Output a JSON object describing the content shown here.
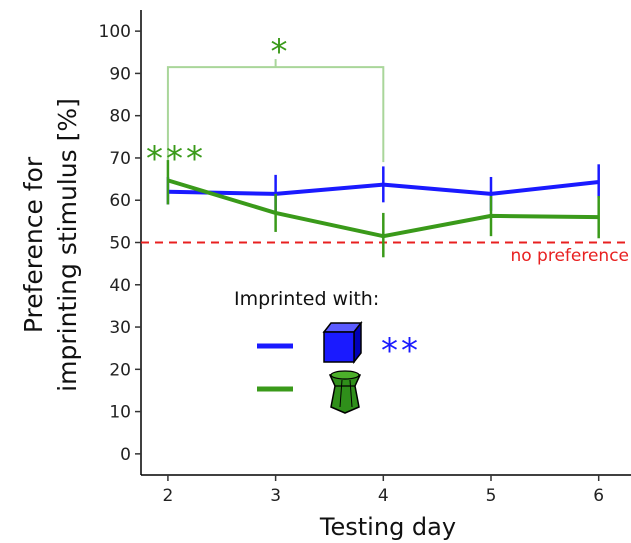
{
  "chart_data": {
    "type": "line",
    "xlabel": "Testing day",
    "ylabel_lines": [
      "Preference for",
      "imprinting stimulus [%]"
    ],
    "xlim": [
      1.75,
      6.3
    ],
    "ylim": [
      -5,
      105
    ],
    "xticks": [
      2,
      3,
      4,
      5,
      6
    ],
    "yticks": [
      0,
      10,
      20,
      30,
      40,
      50,
      60,
      70,
      80,
      90,
      100
    ],
    "grid": false,
    "series": [
      {
        "name": "cube",
        "color": "#1a1aff",
        "x": [
          2,
          3,
          4,
          5,
          6
        ],
        "values": [
          62,
          61.5,
          63.7,
          61.5,
          64.3
        ],
        "err_low": [
          59,
          57,
          59.5,
          57.5,
          60.5
        ],
        "err_high": [
          65.5,
          66,
          68,
          65.5,
          68.5
        ]
      },
      {
        "name": "hourglass",
        "color": "#3a9a1a",
        "x": [
          2,
          3,
          4,
          5,
          6
        ],
        "values": [
          64.7,
          57,
          51.5,
          56.3,
          56
        ],
        "err_low": [
          59,
          52.5,
          46.5,
          51.5,
          51
        ],
        "err_high": [
          69.5,
          61.5,
          57,
          61,
          61
        ]
      }
    ],
    "reference_line": {
      "y": 50,
      "label": "no preference",
      "color": "#e82020"
    },
    "annotations": {
      "bracket_star": "*",
      "day2_stars": "***",
      "cube_stars": "**",
      "legend_title": "Imprinted with:"
    }
  }
}
